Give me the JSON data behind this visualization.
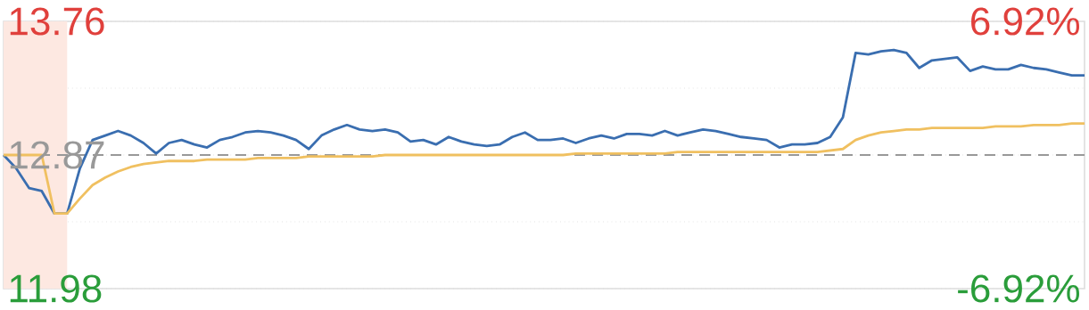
{
  "chart_data": {
    "type": "line",
    "categories": [
      null,
      null,
      null,
      null,
      null,
      null,
      null,
      null,
      null,
      null,
      null,
      null,
      null,
      null,
      null,
      null,
      null,
      null,
      null,
      null,
      null,
      null,
      null,
      null,
      null,
      null,
      null,
      null,
      null,
      null,
      null,
      null,
      null,
      null,
      null,
      null,
      null,
      null,
      null,
      null,
      null,
      null,
      null,
      null,
      null,
      null,
      null,
      null,
      null,
      null,
      null,
      null,
      null,
      null,
      null,
      null,
      null,
      null,
      null,
      null,
      null,
      null,
      null,
      null,
      null,
      null,
      null,
      null,
      null,
      null,
      null,
      null,
      null,
      null,
      null,
      null,
      null,
      null,
      null,
      null,
      null,
      null,
      null,
      null,
      null,
      null
    ],
    "ylim": [
      11.98,
      13.76
    ],
    "yticks": [
      {
        "value": 11.98,
        "label": "11.98"
      },
      {
        "value": 12.425,
        "label": null
      },
      {
        "value": 12.87,
        "label": "12.87"
      },
      {
        "value": 13.315,
        "label": null
      },
      {
        "value": 13.76,
        "label": "13.76"
      }
    ],
    "y2lim": [
      -6.92,
      6.92
    ],
    "y2ticks": [
      {
        "value": -6.92,
        "label": "-6.92%"
      },
      {
        "value": 6.92,
        "label": "6.92%"
      }
    ],
    "grid": "y",
    "ref_lines": [
      {
        "axis": "y",
        "value": 12.87,
        "color": "#999999",
        "line_style": "dashed"
      }
    ],
    "series": [
      {
        "color": "#3a6eb0",
        "values": [
          12.87,
          12.78,
          12.65,
          12.63,
          12.48,
          12.48,
          12.78,
          12.97,
          13.0,
          13.03,
          13.0,
          12.95,
          12.88,
          12.95,
          12.97,
          12.94,
          12.92,
          12.97,
          12.99,
          13.02,
          13.03,
          13.02,
          13.0,
          12.97,
          12.91,
          13.0,
          13.04,
          13.07,
          13.04,
          13.03,
          13.04,
          13.02,
          12.96,
          12.97,
          12.94,
          12.99,
          12.96,
          12.94,
          12.93,
          12.94,
          12.99,
          13.02,
          12.97,
          12.97,
          12.98,
          12.95,
          12.98,
          13.0,
          12.98,
          13.01,
          13.01,
          13.0,
          13.03,
          13.0,
          13.02,
          13.04,
          13.03,
          13.01,
          12.99,
          12.98,
          12.97,
          12.92,
          12.94,
          12.94,
          12.95,
          12.99,
          13.12,
          13.55,
          13.54,
          13.56,
          13.57,
          13.55,
          13.45,
          13.5,
          13.51,
          13.52,
          13.43,
          13.46,
          13.44,
          13.44,
          13.47,
          13.45,
          13.44,
          13.42,
          13.4,
          13.4
        ]
      },
      {
        "color": "#f0c060",
        "values": [
          12.87,
          12.87,
          12.87,
          12.87,
          12.48,
          12.48,
          12.58,
          12.67,
          12.72,
          12.76,
          12.79,
          12.81,
          12.82,
          12.83,
          12.83,
          12.83,
          12.84,
          12.84,
          12.84,
          12.84,
          12.85,
          12.85,
          12.85,
          12.85,
          12.86,
          12.86,
          12.86,
          12.86,
          12.86,
          12.86,
          12.87,
          12.87,
          12.87,
          12.87,
          12.87,
          12.87,
          12.87,
          12.87,
          12.87,
          12.87,
          12.87,
          12.87,
          12.87,
          12.87,
          12.87,
          12.88,
          12.88,
          12.88,
          12.88,
          12.88,
          12.88,
          12.88,
          12.88,
          12.89,
          12.89,
          12.89,
          12.89,
          12.89,
          12.89,
          12.89,
          12.89,
          12.89,
          12.89,
          12.89,
          12.89,
          12.9,
          12.91,
          12.97,
          13.0,
          13.02,
          13.03,
          13.04,
          13.04,
          13.05,
          13.05,
          13.05,
          13.05,
          13.05,
          13.06,
          13.06,
          13.06,
          13.07,
          13.07,
          13.07,
          13.08,
          13.08
        ]
      }
    ]
  }
}
